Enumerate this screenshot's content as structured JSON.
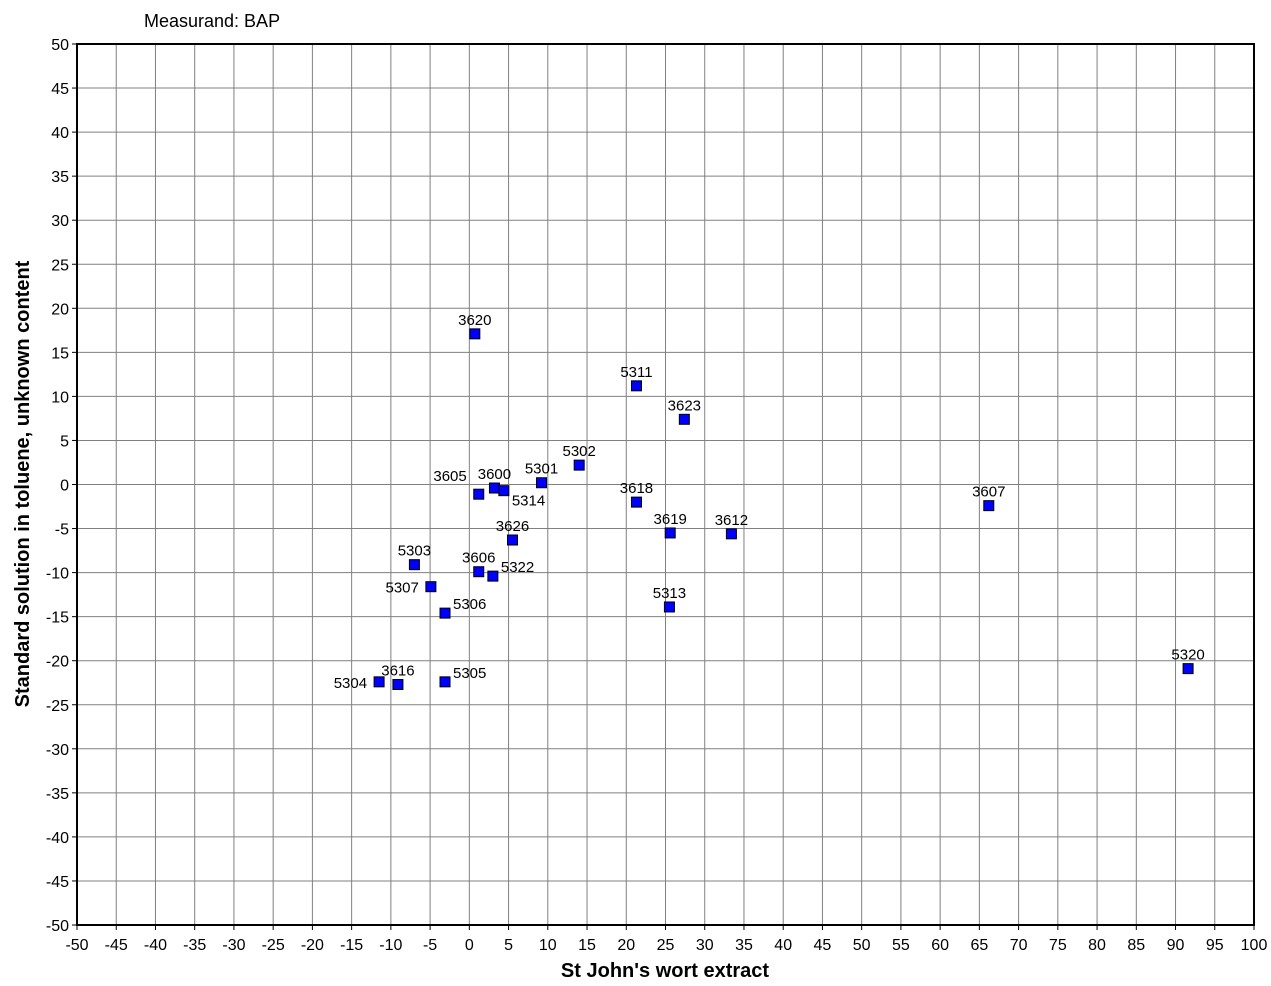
{
  "chart_data": {
    "type": "scatter",
    "title": "Measurand: BAP",
    "xlabel": "St John's wort extract",
    "ylabel": "Standard solution in toluene, unknown content",
    "xlim": [
      -50,
      100
    ],
    "ylim": [
      -50,
      50
    ],
    "xstep": 5,
    "ystep": 5,
    "grid": true,
    "marker_color": "#0000FF",
    "marker_edge": "#000000",
    "grid_color": "#808080",
    "points": [
      {
        "label": "3620",
        "x": 0.7,
        "y": 17.1,
        "pos": "above"
      },
      {
        "label": "5311",
        "x": 21.3,
        "y": 11.2,
        "pos": "above"
      },
      {
        "label": "3623",
        "x": 27.4,
        "y": 7.4,
        "pos": "above"
      },
      {
        "label": "5302",
        "x": 14.0,
        "y": 2.2,
        "pos": "above"
      },
      {
        "label": "5301",
        "x": 9.2,
        "y": 0.2,
        "pos": "above"
      },
      {
        "label": "3600",
        "x": 3.2,
        "y": -0.4,
        "pos": "above"
      },
      {
        "label": "5314",
        "x": 4.4,
        "y": -0.7,
        "pos": "belowright"
      },
      {
        "label": "3605",
        "x": 1.2,
        "y": -1.1,
        "pos": "upleft"
      },
      {
        "label": "3618",
        "x": 21.3,
        "y": -2.0,
        "pos": "above"
      },
      {
        "label": "3607",
        "x": 66.2,
        "y": -2.4,
        "pos": "above"
      },
      {
        "label": "3619",
        "x": 25.6,
        "y": -5.5,
        "pos": "above"
      },
      {
        "label": "3612",
        "x": 33.4,
        "y": -5.6,
        "pos": "above"
      },
      {
        "label": "3626",
        "x": 5.5,
        "y": -6.3,
        "pos": "above"
      },
      {
        "label": "5303",
        "x": -7.0,
        "y": -9.1,
        "pos": "above"
      },
      {
        "label": "3606",
        "x": 1.2,
        "y": -9.9,
        "pos": "above"
      },
      {
        "label": "5322",
        "x": 3.0,
        "y": -10.4,
        "pos": "upright"
      },
      {
        "label": "5307",
        "x": -4.9,
        "y": -11.6,
        "pos": "left"
      },
      {
        "label": "5306",
        "x": -3.1,
        "y": -14.6,
        "pos": "upright"
      },
      {
        "label": "5313",
        "x": 25.5,
        "y": -13.9,
        "pos": "above"
      },
      {
        "label": "5320",
        "x": 91.6,
        "y": -20.9,
        "pos": "above"
      },
      {
        "label": "5304",
        "x": -11.5,
        "y": -22.4,
        "pos": "left"
      },
      {
        "label": "3616",
        "x": -9.1,
        "y": -22.7,
        "pos": "above"
      },
      {
        "label": "5305",
        "x": -3.1,
        "y": -22.4,
        "pos": "upright"
      }
    ]
  }
}
